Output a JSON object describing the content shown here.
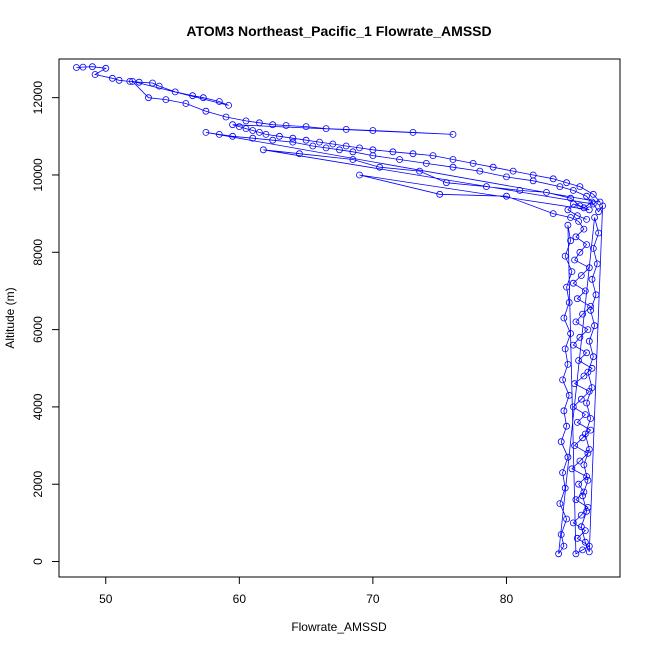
{
  "chart_data": {
    "type": "scatter",
    "title": "ATOM3 Northeast_Pacific_1 Flowrate_AMSSD",
    "xlabel": "Flowrate_AMSSD",
    "ylabel": "Altitude (m)",
    "xlim": [
      46.5,
      88.5
    ],
    "ylim": [
      -400,
      13000
    ],
    "xticks": [
      50,
      60,
      70,
      80
    ],
    "yticks": [
      0,
      2000,
      4000,
      6000,
      8000,
      10000,
      12000
    ],
    "series_color": "#0000ff",
    "grid": false,
    "series": [
      {
        "points": [
          [
            47.8,
            12780
          ],
          [
            48.3,
            12790
          ],
          [
            49.0,
            12800
          ],
          [
            50.0,
            12760
          ],
          [
            49.2,
            12600
          ],
          [
            50.5,
            12500
          ],
          [
            51.0,
            12450
          ],
          [
            51.8,
            12420
          ],
          [
            52.5,
            12400
          ],
          [
            53.5,
            12380
          ],
          [
            54.0,
            12300
          ],
          [
            55.2,
            12150
          ],
          [
            56.5,
            12050
          ],
          [
            57.3,
            12000
          ],
          [
            58.5,
            11900
          ],
          [
            59.2,
            11800
          ],
          [
            52.0,
            12420
          ],
          [
            53.2,
            12000
          ],
          [
            54.5,
            11950
          ],
          [
            56.0,
            11850
          ],
          [
            57.5,
            11650
          ],
          [
            59.0,
            11500
          ],
          [
            60.5,
            11400
          ],
          [
            61.5,
            11350
          ],
          [
            62.5,
            11300
          ],
          [
            63.5,
            11280
          ],
          [
            65.0,
            11250
          ],
          [
            66.5,
            11200
          ],
          [
            68.0,
            11180
          ],
          [
            70.0,
            11150
          ],
          [
            73.0,
            11100
          ],
          [
            76.0,
            11050
          ],
          [
            59.5,
            11300
          ],
          [
            60.0,
            11250
          ],
          [
            60.5,
            11200
          ],
          [
            61.0,
            11150
          ],
          [
            61.5,
            11100
          ],
          [
            62.0,
            11050
          ],
          [
            63.0,
            11000
          ],
          [
            64.0,
            10950
          ],
          [
            65.0,
            10900
          ],
          [
            66.0,
            10850
          ],
          [
            67.0,
            10800
          ],
          [
            68.0,
            10750
          ],
          [
            69.0,
            10700
          ],
          [
            70.0,
            10650
          ],
          [
            71.5,
            10600
          ],
          [
            73.0,
            10550
          ],
          [
            74.5,
            10500
          ],
          [
            76.0,
            10400
          ],
          [
            77.5,
            10300
          ],
          [
            79.0,
            10200
          ],
          [
            80.5,
            10100
          ],
          [
            82.0,
            10000
          ],
          [
            83.5,
            9900
          ],
          [
            84.5,
            9800
          ],
          [
            85.5,
            9700
          ],
          [
            86.5,
            9500
          ],
          [
            87.0,
            9300
          ],
          [
            57.5,
            11100
          ],
          [
            58.5,
            11050
          ],
          [
            59.5,
            11000
          ],
          [
            61.0,
            10950
          ],
          [
            62.5,
            10900
          ],
          [
            64.0,
            10850
          ],
          [
            65.5,
            10750
          ],
          [
            66.5,
            10700
          ],
          [
            67.5,
            10650
          ],
          [
            68.5,
            10600
          ],
          [
            70.0,
            10500
          ],
          [
            72.0,
            10400
          ],
          [
            74.0,
            10300
          ],
          [
            76.0,
            10200
          ],
          [
            78.0,
            10100
          ],
          [
            80.0,
            9950
          ],
          [
            82.0,
            9850
          ],
          [
            84.0,
            9700
          ],
          [
            85.0,
            9600
          ],
          [
            86.0,
            9450
          ],
          [
            86.5,
            9250
          ],
          [
            61.8,
            10650
          ],
          [
            64.5,
            10550
          ],
          [
            68.5,
            10400
          ],
          [
            70.5,
            10200
          ],
          [
            73.5,
            10100
          ],
          [
            75.5,
            9800
          ],
          [
            78.5,
            9700
          ],
          [
            81.0,
            9600
          ],
          [
            83.0,
            9550
          ],
          [
            84.8,
            9400
          ],
          [
            85.5,
            9200
          ],
          [
            86.2,
            9100
          ],
          [
            69.0,
            10000
          ],
          [
            75.0,
            9500
          ],
          [
            80.0,
            9450
          ],
          [
            83.5,
            9000
          ],
          [
            84.8,
            8900
          ],
          [
            85.4,
            8800
          ],
          [
            85.8,
            8600
          ],
          [
            85.2,
            8400
          ],
          [
            86.0,
            8200
          ],
          [
            85.5,
            8000
          ],
          [
            85.1,
            7800
          ],
          [
            86.2,
            7600
          ],
          [
            85.6,
            7400
          ],
          [
            85.0,
            7200
          ],
          [
            85.9,
            7000
          ],
          [
            85.3,
            6800
          ],
          [
            86.3,
            6600
          ],
          [
            85.7,
            6400
          ],
          [
            85.2,
            6200
          ],
          [
            86.1,
            6000
          ],
          [
            85.5,
            5800
          ],
          [
            85.0,
            5600
          ],
          [
            86.0,
            5400
          ],
          [
            85.4,
            5200
          ],
          [
            86.4,
            5000
          ],
          [
            85.8,
            4800
          ],
          [
            85.1,
            4600
          ],
          [
            86.2,
            4400
          ],
          [
            85.6,
            4200
          ],
          [
            85.0,
            4000
          ],
          [
            85.9,
            3800
          ],
          [
            85.3,
            3600
          ],
          [
            86.3,
            3400
          ],
          [
            85.7,
            3200
          ],
          [
            85.1,
            3000
          ],
          [
            86.1,
            2800
          ],
          [
            85.5,
            2600
          ],
          [
            84.9,
            2400
          ],
          [
            86.0,
            2200
          ],
          [
            85.4,
            2000
          ],
          [
            85.8,
            1800
          ],
          [
            85.2,
            1600
          ],
          [
            86.1,
            1400
          ],
          [
            85.6,
            1200
          ],
          [
            85.0,
            1000
          ],
          [
            85.9,
            800
          ],
          [
            85.3,
            600
          ],
          [
            86.2,
            400
          ],
          [
            85.7,
            300
          ],
          [
            85.2,
            200
          ],
          [
            84.6,
            8700
          ],
          [
            84.8,
            8300
          ],
          [
            84.4,
            7900
          ],
          [
            84.9,
            7500
          ],
          [
            84.5,
            7100
          ],
          [
            84.7,
            6700
          ],
          [
            84.3,
            6300
          ],
          [
            84.8,
            5900
          ],
          [
            84.4,
            5500
          ],
          [
            84.6,
            5100
          ],
          [
            84.2,
            4700
          ],
          [
            84.7,
            4300
          ],
          [
            84.3,
            3900
          ],
          [
            84.5,
            3500
          ],
          [
            84.1,
            3100
          ],
          [
            84.6,
            2700
          ],
          [
            84.2,
            2300
          ],
          [
            84.4,
            1900
          ],
          [
            84.0,
            1500
          ],
          [
            84.5,
            1100
          ],
          [
            84.1,
            700
          ],
          [
            84.3,
            400
          ],
          [
            83.9,
            200
          ],
          [
            86.6,
            8900
          ],
          [
            86.9,
            8500
          ],
          [
            86.5,
            8100
          ],
          [
            86.8,
            7700
          ],
          [
            86.4,
            7300
          ],
          [
            86.7,
            6900
          ],
          [
            86.3,
            6500
          ],
          [
            86.6,
            6100
          ],
          [
            86.2,
            5700
          ],
          [
            86.5,
            5300
          ],
          [
            86.1,
            4900
          ],
          [
            86.4,
            4500
          ],
          [
            86.0,
            4100
          ],
          [
            86.3,
            3700
          ],
          [
            85.9,
            3300
          ],
          [
            86.2,
            2900
          ],
          [
            85.8,
            2500
          ],
          [
            86.1,
            2100
          ],
          [
            85.7,
            1700
          ],
          [
            86.0,
            1300
          ],
          [
            85.6,
            900
          ],
          [
            85.9,
            500
          ],
          [
            86.2,
            250
          ],
          [
            87.2,
            9200
          ],
          [
            86.9,
            9050
          ],
          [
            86.4,
            9300
          ],
          [
            85.8,
            9150
          ],
          [
            85.0,
            9250
          ],
          [
            84.6,
            9100
          ],
          [
            85.3,
            8950
          ],
          [
            86.0,
            8850
          ]
        ]
      }
    ]
  }
}
